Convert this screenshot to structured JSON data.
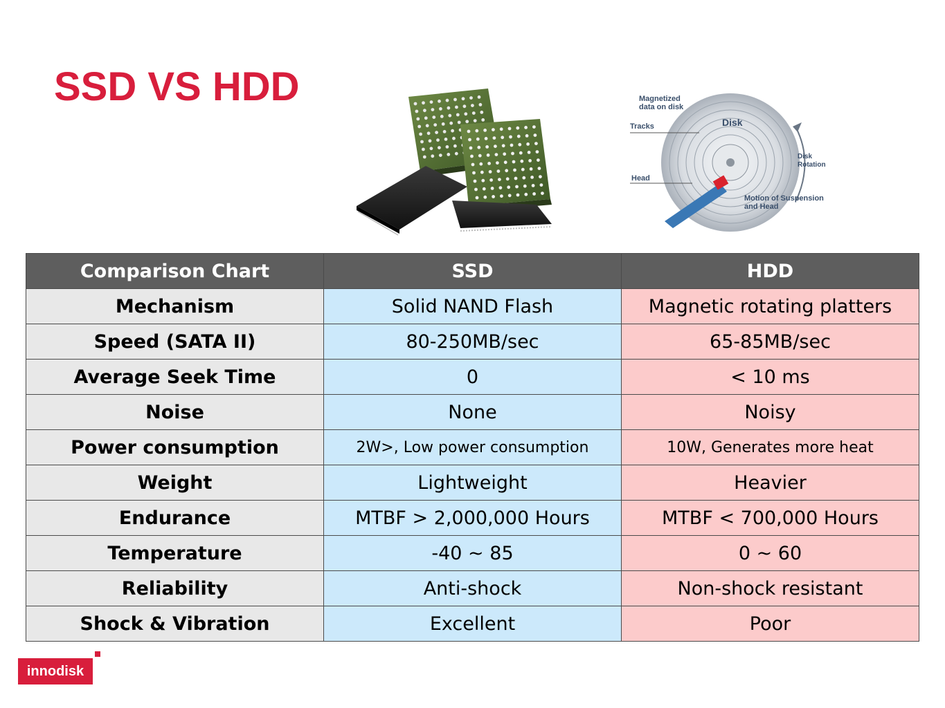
{
  "title": "SSD VS HDD",
  "hdd_labels": {
    "magnetized": [
      "Magnetized",
      "data on disk"
    ],
    "tracks": "Tracks",
    "disk": "Disk",
    "head": "Head",
    "rotation": [
      "Disk",
      "Rotation"
    ],
    "motion": [
      "Motion of Suspension",
      "and Head"
    ]
  },
  "table": {
    "headers": [
      "Comparison Chart",
      "SSD",
      "HDD"
    ],
    "rows": [
      {
        "label": "Mechanism",
        "ssd": "Solid NAND Flash",
        "hdd": "Magnetic rotating platters"
      },
      {
        "label": "Speed (SATA II)",
        "ssd": "80-250MB/sec",
        "hdd": "65-85MB/sec"
      },
      {
        "label": "Average Seek Time",
        "ssd": "0",
        "hdd": "< 10 ms"
      },
      {
        "label": "Noise",
        "ssd": "None",
        "hdd": "Noisy"
      },
      {
        "label": "Power consumption",
        "ssd": "2W>, Low power consumption",
        "hdd": "10W, Generates more heat"
      },
      {
        "label": "Weight",
        "ssd": "Lightweight",
        "hdd": "Heavier"
      },
      {
        "label": "Endurance",
        "ssd": "MTBF > 2,000,000 Hours",
        "hdd": "MTBF < 700,000 Hours"
      },
      {
        "label": "Temperature",
        "ssd": "-40 ~ 85",
        "hdd": "0 ~ 60"
      },
      {
        "label": "Reliability",
        "ssd": "Anti-shock",
        "hdd": "Non-shock resistant"
      },
      {
        "label": "Shock & Vibration",
        "ssd": "Excellent",
        "hdd": "Poor"
      }
    ]
  },
  "logo": {
    "text": "innodisk"
  },
  "colors": {
    "accent": "#d81e3c",
    "header_bg": "#5e5e5e",
    "label_bg": "#e8e8e8",
    "ssd_bg": "#cce9fb",
    "hdd_bg": "#fccbcb"
  }
}
